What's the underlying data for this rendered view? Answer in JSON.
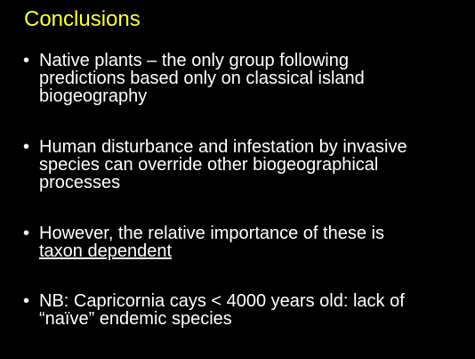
{
  "slide": {
    "title": "Conclusions",
    "bullet_symbol": "•",
    "bullets": [
      {
        "lines": [
          "Native plants – the only group following",
          "predictions based only on classical island",
          "biogeography"
        ]
      },
      {
        "lines": [
          "Human disturbance and infestation by invasive",
          "species can override other biogeographical",
          "processes"
        ]
      },
      {
        "lines": [
          "However, the relative importance of these is",
          "taxon dependent"
        ]
      },
      {
        "lines": [
          "NB: Capricornia cays < 4000 years old: lack of",
          "“naïve” endemic species"
        ]
      }
    ],
    "colors": {
      "background": "#000000",
      "title": "#ffff33",
      "text": "#ffffff"
    }
  }
}
